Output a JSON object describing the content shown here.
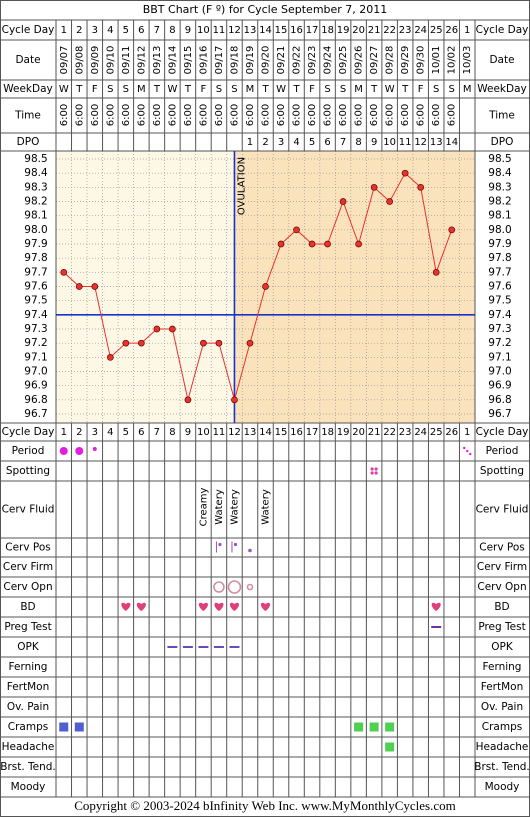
{
  "title": "BBT Chart (F º) for Cycle September 7, 2011",
  "footer": "Copyright © 2003-2024 bInfinity Web Inc.     www.MyMonthlyCycles.com",
  "row_labels": {
    "cycle_day": "Cycle Day",
    "date": "Date",
    "weekday": "WeekDay",
    "time": "Time",
    "dpo": "DPO"
  },
  "dates": [
    "09/07",
    "09/08",
    "09/09",
    "09/10",
    "09/11",
    "09/12",
    "09/13",
    "09/14",
    "09/15",
    "09/16",
    "09/17",
    "09/18",
    "09/19",
    "09/20",
    "09/21",
    "09/22",
    "09/23",
    "09/24",
    "09/25",
    "09/26",
    "09/27",
    "09/28",
    "09/29",
    "09/30",
    "10/01",
    "10/02",
    "10/03"
  ],
  "weekdays": [
    "W",
    "T",
    "F",
    "S",
    "S",
    "M",
    "T",
    "W",
    "T",
    "F",
    "S",
    "S",
    "M",
    "T",
    "W",
    "T",
    "F",
    "S",
    "S",
    "M",
    "T",
    "W",
    "T",
    "F",
    "S",
    "S",
    "M"
  ],
  "times": [
    "6:00",
    "6:00",
    "6:00",
    "6:00",
    "6:00",
    "6:00",
    "6:00",
    "6:00",
    "6:00",
    "6:00",
    "6:00",
    "6:00",
    "6:00",
    "6:00",
    "6:00",
    "6:00",
    "6:00",
    "6:00",
    "6:00",
    "6:00",
    "6:00",
    "6:00",
    "6:00",
    "6:00",
    "6:00",
    "6:00",
    null
  ],
  "dpo": [
    null,
    null,
    null,
    null,
    null,
    null,
    null,
    null,
    null,
    null,
    null,
    null,
    1,
    2,
    3,
    4,
    5,
    6,
    7,
    8,
    9,
    10,
    11,
    12,
    13,
    14,
    null
  ],
  "tracking_labels": [
    "Period",
    "Spotting",
    "Cerv Fluid",
    "Cerv Pos",
    "Cerv Firm",
    "Cerv Opn",
    "BD",
    "Preg Test",
    "OPK",
    "Ferning",
    "FertMon",
    "Ov. Pain",
    "Cramps",
    "Headache",
    "Brst. Tend.",
    "Moody"
  ],
  "cerv_fluid": [
    null,
    null,
    null,
    null,
    null,
    null,
    null,
    null,
    null,
    "Creamy",
    "Watery",
    "Watery",
    null,
    "Watery",
    null,
    null,
    null,
    null,
    null,
    null,
    null,
    null,
    null,
    null,
    null,
    null,
    null
  ],
  "chart_data": {
    "type": "line",
    "categories": [
      1,
      2,
      3,
      4,
      5,
      6,
      7,
      8,
      9,
      10,
      11,
      12,
      13,
      14,
      15,
      16,
      17,
      18,
      19,
      20,
      21,
      22,
      23,
      24,
      25,
      26,
      1
    ],
    "values": [
      97.7,
      97.6,
      97.6,
      97.1,
      97.2,
      97.2,
      97.3,
      97.3,
      96.8,
      97.2,
      97.2,
      96.8,
      97.2,
      97.6,
      97.9,
      98.0,
      97.9,
      97.9,
      98.2,
      97.9,
      98.3,
      98.2,
      98.4,
      98.3,
      97.7,
      98.0,
      null
    ],
    "color": "#e8322c",
    "ylim": [
      96.7,
      98.5
    ],
    "yticks": [
      98.5,
      98.4,
      98.3,
      98.2,
      98.1,
      {
        "value": 98.0,
        "label": "98.0"
      },
      97.9,
      97.8,
      97.7,
      97.6,
      97.5,
      97.4,
      97.3,
      97.2,
      97.1,
      {
        "value": 97.0,
        "label": "97.0"
      },
      96.9,
      96.8,
      96.7
    ],
    "coverline": 97.4,
    "ovulation": {
      "text": "OVULATION",
      "day": 12
    },
    "grid": true
  }
}
